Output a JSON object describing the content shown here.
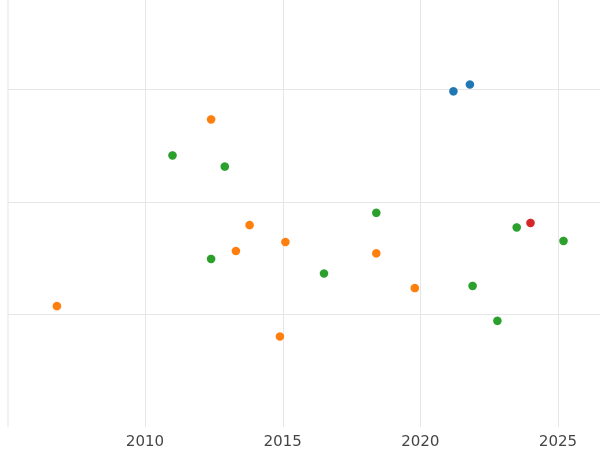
{
  "chart_data": {
    "type": "scatter",
    "title": "",
    "xlabel": "",
    "ylabel": "",
    "xlim": [
      2005.0,
      2026.5
    ],
    "ylim": [
      0.0,
      3.8
    ],
    "x_ticks": [
      2010,
      2015,
      2020,
      2025
    ],
    "x_tick_labels": [
      "2010",
      "2015",
      "2020",
      "2025"
    ],
    "y_gridlines": [
      1,
      2,
      3
    ],
    "grid": true,
    "legend": "none",
    "series": [
      {
        "color": "#1f77b4",
        "points": [
          {
            "x": 2021.2,
            "y": 2.98
          },
          {
            "x": 2021.8,
            "y": 3.04
          }
        ]
      },
      {
        "color": "#ff7f0e",
        "points": [
          {
            "x": 2006.8,
            "y": 1.07
          },
          {
            "x": 2012.4,
            "y": 2.73
          },
          {
            "x": 2013.3,
            "y": 1.56
          },
          {
            "x": 2013.8,
            "y": 1.79
          },
          {
            "x": 2015.1,
            "y": 1.64
          },
          {
            "x": 2014.9,
            "y": 0.8
          },
          {
            "x": 2018.4,
            "y": 1.54
          },
          {
            "x": 2019.8,
            "y": 1.23
          }
        ]
      },
      {
        "color": "#2ca02c",
        "points": [
          {
            "x": 2011.0,
            "y": 2.41
          },
          {
            "x": 2012.9,
            "y": 2.31
          },
          {
            "x": 2012.4,
            "y": 1.49
          },
          {
            "x": 2016.5,
            "y": 1.36
          },
          {
            "x": 2018.4,
            "y": 1.9
          },
          {
            "x": 2021.9,
            "y": 1.25
          },
          {
            "x": 2022.8,
            "y": 0.94
          },
          {
            "x": 2023.5,
            "y": 1.77
          },
          {
            "x": 2025.2,
            "y": 1.65
          }
        ]
      },
      {
        "color": "#d62728",
        "points": [
          {
            "x": 2024.0,
            "y": 1.81
          }
        ]
      }
    ]
  }
}
